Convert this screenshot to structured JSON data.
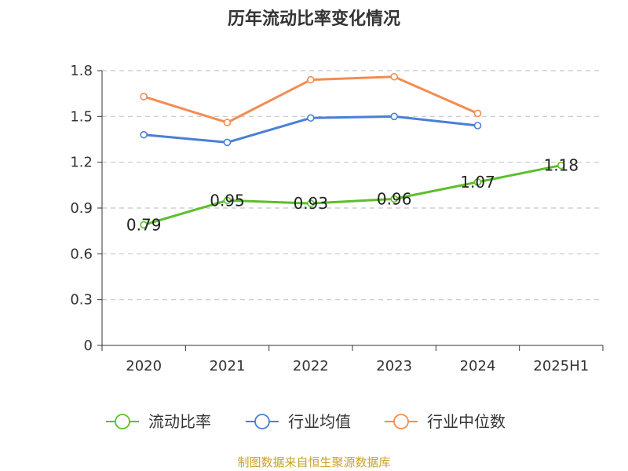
{
  "chart_data": {
    "type": "line",
    "title": "历年流动比率变化情况",
    "categories": [
      "2020",
      "2021",
      "2022",
      "2023",
      "2024",
      "2025H1"
    ],
    "ylim": [
      0,
      1.8
    ],
    "yticks": [
      "0",
      "0.3",
      "0.6",
      "0.9",
      "1.2",
      "1.5",
      "1.8"
    ],
    "ytick_values": [
      0,
      0.3,
      0.6,
      0.9,
      1.2,
      1.5,
      1.8
    ],
    "grid": true,
    "legend_position": "bottom",
    "series": [
      {
        "name": "流动比率",
        "color": "#5cbf2a",
        "values": [
          0.79,
          0.95,
          0.93,
          0.96,
          1.07,
          1.18
        ],
        "labels": [
          "0.79",
          "0.95",
          "0.93",
          "0.96",
          "1.07",
          "1.18"
        ]
      },
      {
        "name": "行业均值",
        "color": "#4a7fd6",
        "values": [
          1.38,
          1.33,
          1.49,
          1.5,
          1.44,
          null
        ]
      },
      {
        "name": "行业中位数",
        "color": "#f28c52",
        "values": [
          1.63,
          1.46,
          1.74,
          1.76,
          1.52,
          null
        ]
      }
    ]
  },
  "footer": "制图数据来自恒生聚源数据库"
}
